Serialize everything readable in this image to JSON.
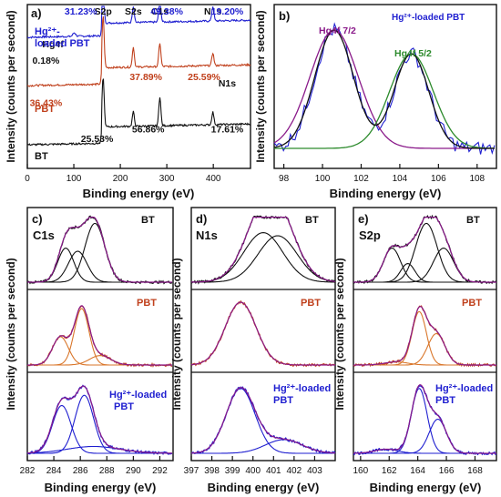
{
  "colors": {
    "blue": "#1f1fd0",
    "red": "#c0401c",
    "black": "#111111",
    "purple": "#8a1a8a",
    "green": "#2c8a2c",
    "orange": "#d9762a"
  },
  "chart_data": [
    {
      "panel": "a)",
      "type": "line",
      "xlabel": "Binding energy (eV)",
      "ylabel": "Intensity (counts per second)",
      "xlim": [
        0,
        480
      ],
      "xticks": [
        "0",
        "100",
        "200",
        "300",
        "400"
      ],
      "peak_positions": {
        "S2p": 163,
        "S2s": 228,
        "C1s": 285,
        "N1s": 399,
        "Hg4f": 101
      },
      "series": [
        {
          "name": "Hg²⁺-loaded PBT",
          "color": "blue",
          "offset": 2
        },
        {
          "name": "PBT",
          "color": "red",
          "offset": 1
        },
        {
          "name": "BT",
          "color": "black",
          "offset": 0
        }
      ],
      "annotations": [
        {
          "text": "S2p",
          "x": 163,
          "row": 2,
          "color": "black"
        },
        {
          "text": "S2s",
          "x": 228,
          "row": 2,
          "color": "black"
        },
        {
          "text": "C1s",
          "x": 285,
          "row": 2,
          "color": "black"
        },
        {
          "text": "N1s",
          "x": 399,
          "row": 2,
          "color": "black"
        },
        {
          "text": "31.23%",
          "x": 115,
          "row": 2,
          "color": "blue"
        },
        {
          "text": "49.38%",
          "x": 300,
          "row": 2,
          "color": "blue"
        },
        {
          "text": "19.20%",
          "x": 430,
          "row": 2,
          "color": "blue"
        },
        {
          "text": "0.18%",
          "x": 40,
          "row": 1.6,
          "color": "black"
        },
        {
          "text": "Hg4f",
          "x": 55,
          "row": 1.85,
          "color": "black"
        },
        {
          "text": "37.89%",
          "x": 255,
          "row": 1.35,
          "color": "red"
        },
        {
          "text": "25.59%",
          "x": 380,
          "row": 1.35,
          "color": "red"
        },
        {
          "text": "N1s",
          "x": 430,
          "row": 1.25,
          "color": "black"
        },
        {
          "text": "36.43%",
          "x": 40,
          "row": 0.95,
          "color": "red"
        },
        {
          "text": "56.86%",
          "x": 260,
          "row": 0.55,
          "color": "black"
        },
        {
          "text": "17.61%",
          "x": 430,
          "row": 0.55,
          "color": "black"
        },
        {
          "text": "25.53%",
          "x": 150,
          "row": 0.4,
          "color": "black"
        }
      ],
      "labels": [
        {
          "text": "Hg²⁺-",
          "color": "blue"
        },
        {
          "text": "loaded PBT",
          "color": "blue"
        },
        {
          "text": "PBT",
          "color": "red"
        },
        {
          "text": "BT",
          "color": "black"
        }
      ]
    },
    {
      "panel": "b)",
      "type": "line",
      "xlabel": "Binding energy (eV)",
      "ylabel": "",
      "xlim": [
        97.5,
        109
      ],
      "xticks": [
        "98",
        "100",
        "102",
        "104",
        "106",
        "108"
      ],
      "title": "Hg²⁺-loaded PBT",
      "peaks": [
        {
          "name": "Hg4f 7/2",
          "center": 100.6,
          "height": 1.0,
          "sigma": 1.0,
          "color": "purple"
        },
        {
          "name": "Hg4f 5/2",
          "center": 104.6,
          "height": 0.8,
          "sigma": 0.9,
          "color": "green"
        }
      ]
    },
    {
      "panel": "c)",
      "element": "C1s",
      "type": "line",
      "xlabel": "Binding energy (eV)",
      "ylabel": "Intensity (counts per second)",
      "xlim": [
        282,
        293
      ],
      "xticks": [
        "282",
        "284",
        "286",
        "288",
        "290",
        "292"
      ],
      "rows": [
        {
          "name": "BT",
          "color": "black",
          "peaks": [
            [
              284.9,
              0.55,
              0.6
            ],
            [
              285.8,
              0.5,
              0.7
            ],
            [
              287.1,
              0.95,
              0.75
            ]
          ]
        },
        {
          "name": "PBT",
          "color": "red",
          "peaks": [
            [
              284.5,
              0.45,
              0.6
            ],
            [
              286.1,
              0.9,
              0.55
            ],
            [
              287.5,
              0.15,
              0.8
            ]
          ]
        },
        {
          "name": "Hg²⁺-loaded PBT",
          "color": "blue",
          "peaks": [
            [
              284.6,
              0.7,
              0.7
            ],
            [
              286.3,
              0.85,
              0.7
            ],
            [
              287.0,
              0.1,
              2.0
            ]
          ]
        }
      ]
    },
    {
      "panel": "d)",
      "element": "N1s",
      "type": "line",
      "xlabel": "Binding energy (eV)",
      "ylabel": "Intensity (counts per second)",
      "xlim": [
        397,
        404
      ],
      "xticks": [
        "397",
        "398",
        "399",
        "400",
        "401",
        "402",
        "403"
      ],
      "rows": [
        {
          "name": "BT",
          "color": "black",
          "peaks": [
            [
              400.5,
              0.8,
              0.95
            ],
            [
              401.2,
              0.75,
              0.95
            ]
          ]
        },
        {
          "name": "PBT",
          "color": "red",
          "peaks": [
            [
              399.4,
              1.0,
              0.75
            ]
          ]
        },
        {
          "name": "Hg²⁺-loaded PBT",
          "color": "blue",
          "peaks": [
            [
              399.4,
              0.95,
              0.7
            ],
            [
              401.5,
              0.2,
              0.9
            ]
          ]
        }
      ]
    },
    {
      "panel": "e)",
      "element": "S2p",
      "type": "line",
      "xlabel": "Binding energy (eV)",
      "ylabel": "Intensity (counts per second)",
      "xlim": [
        159.5,
        169.5
      ],
      "xticks": [
        "160",
        "162",
        "164",
        "166",
        "168"
      ],
      "rows": [
        {
          "name": "BT",
          "color": "black",
          "peaks": [
            [
              162.2,
              0.55,
              0.6
            ],
            [
              163.3,
              0.3,
              0.5
            ],
            [
              164.6,
              0.95,
              0.75
            ],
            [
              165.8,
              0.55,
              0.7
            ]
          ]
        },
        {
          "name": "PBT",
          "color": "red",
          "peaks": [
            [
              164.1,
              0.85,
              0.5
            ],
            [
              165.3,
              0.5,
              0.6
            ],
            [
              162.5,
              0.05,
              0.8
            ]
          ]
        },
        {
          "name": "Hg²⁺-loaded PBT",
          "color": "blue",
          "peaks": [
            [
              164.1,
              0.95,
              0.55
            ],
            [
              165.4,
              0.5,
              0.6
            ],
            [
              161.8,
              0.06,
              0.8
            ]
          ]
        }
      ]
    }
  ],
  "text": {
    "a_label": "a)",
    "b_label": "b)",
    "c_label": "c)",
    "d_label": "d)",
    "e_label": "e)",
    "xlabel": "Binding energy (eV)",
    "ylabel": "Intensity (counts per second)",
    "b_title": "Hg²⁺-loaded PBT",
    "b_peak1": "Hg4f 7/2",
    "b_peak2": "Hg4f 5/2",
    "c_el": "C1s",
    "d_el": "N1s",
    "e_el": "S2p",
    "bt": "BT",
    "pbt": "PBT",
    "hg_line1": "Hg²⁺-loaded",
    "hg_line2": "PBT",
    "hg_line1_a": "Hg²⁺-",
    "hg_line2_a": "loaded PBT"
  }
}
